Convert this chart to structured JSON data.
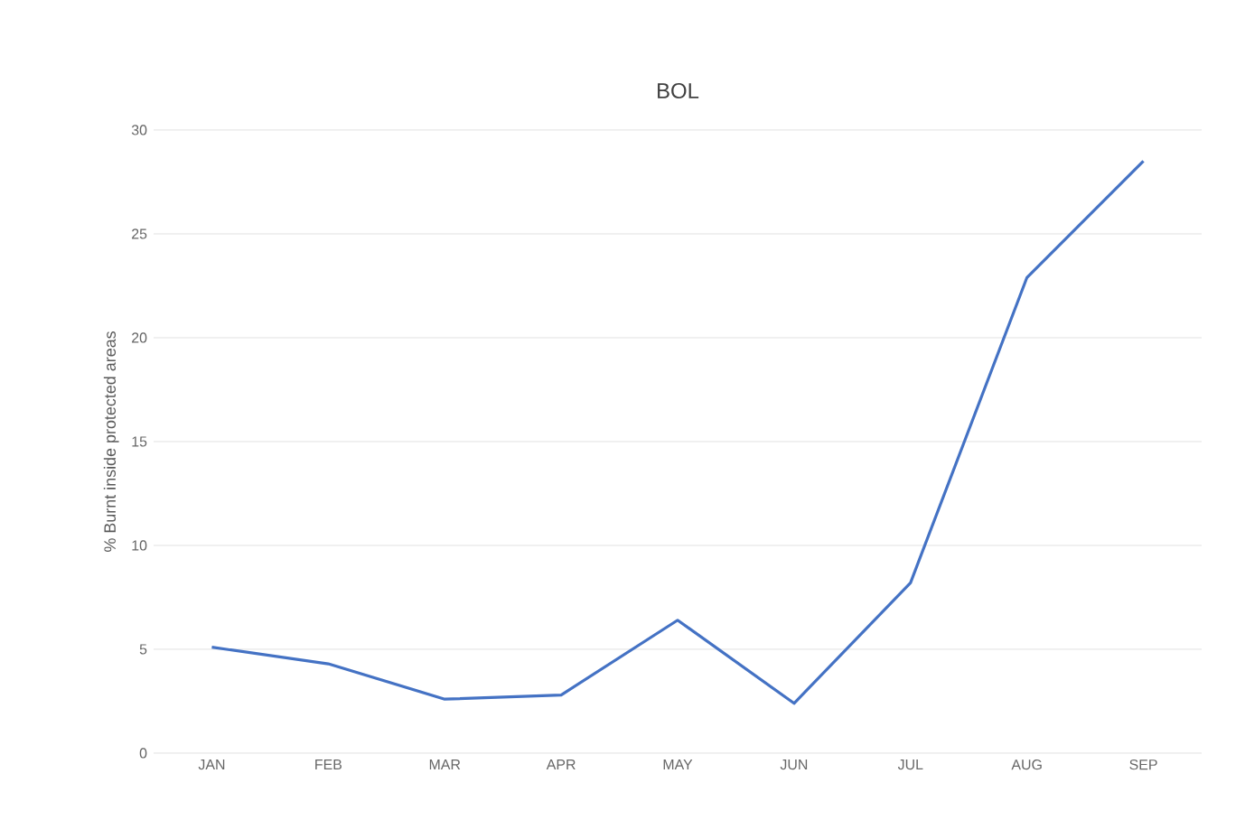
{
  "chart_data": {
    "type": "line",
    "title": "BOL",
    "ylabel": "% Burnt inside protected areas",
    "categories": [
      "JAN",
      "FEB",
      "MAR",
      "APR",
      "MAY",
      "JUN",
      "JUL",
      "AUG",
      "SEP"
    ],
    "series": [
      {
        "color": "#4472c4",
        "values": [
          5.1,
          4.3,
          2.6,
          2.8,
          6.4,
          2.4,
          8.2,
          22.9,
          28.5
        ]
      }
    ],
    "ylim": [
      0,
      30
    ],
    "yticks": [
      0,
      5,
      10,
      15,
      20,
      25,
      30
    ],
    "grid": "y",
    "marker": "none",
    "line_style": "solid"
  }
}
